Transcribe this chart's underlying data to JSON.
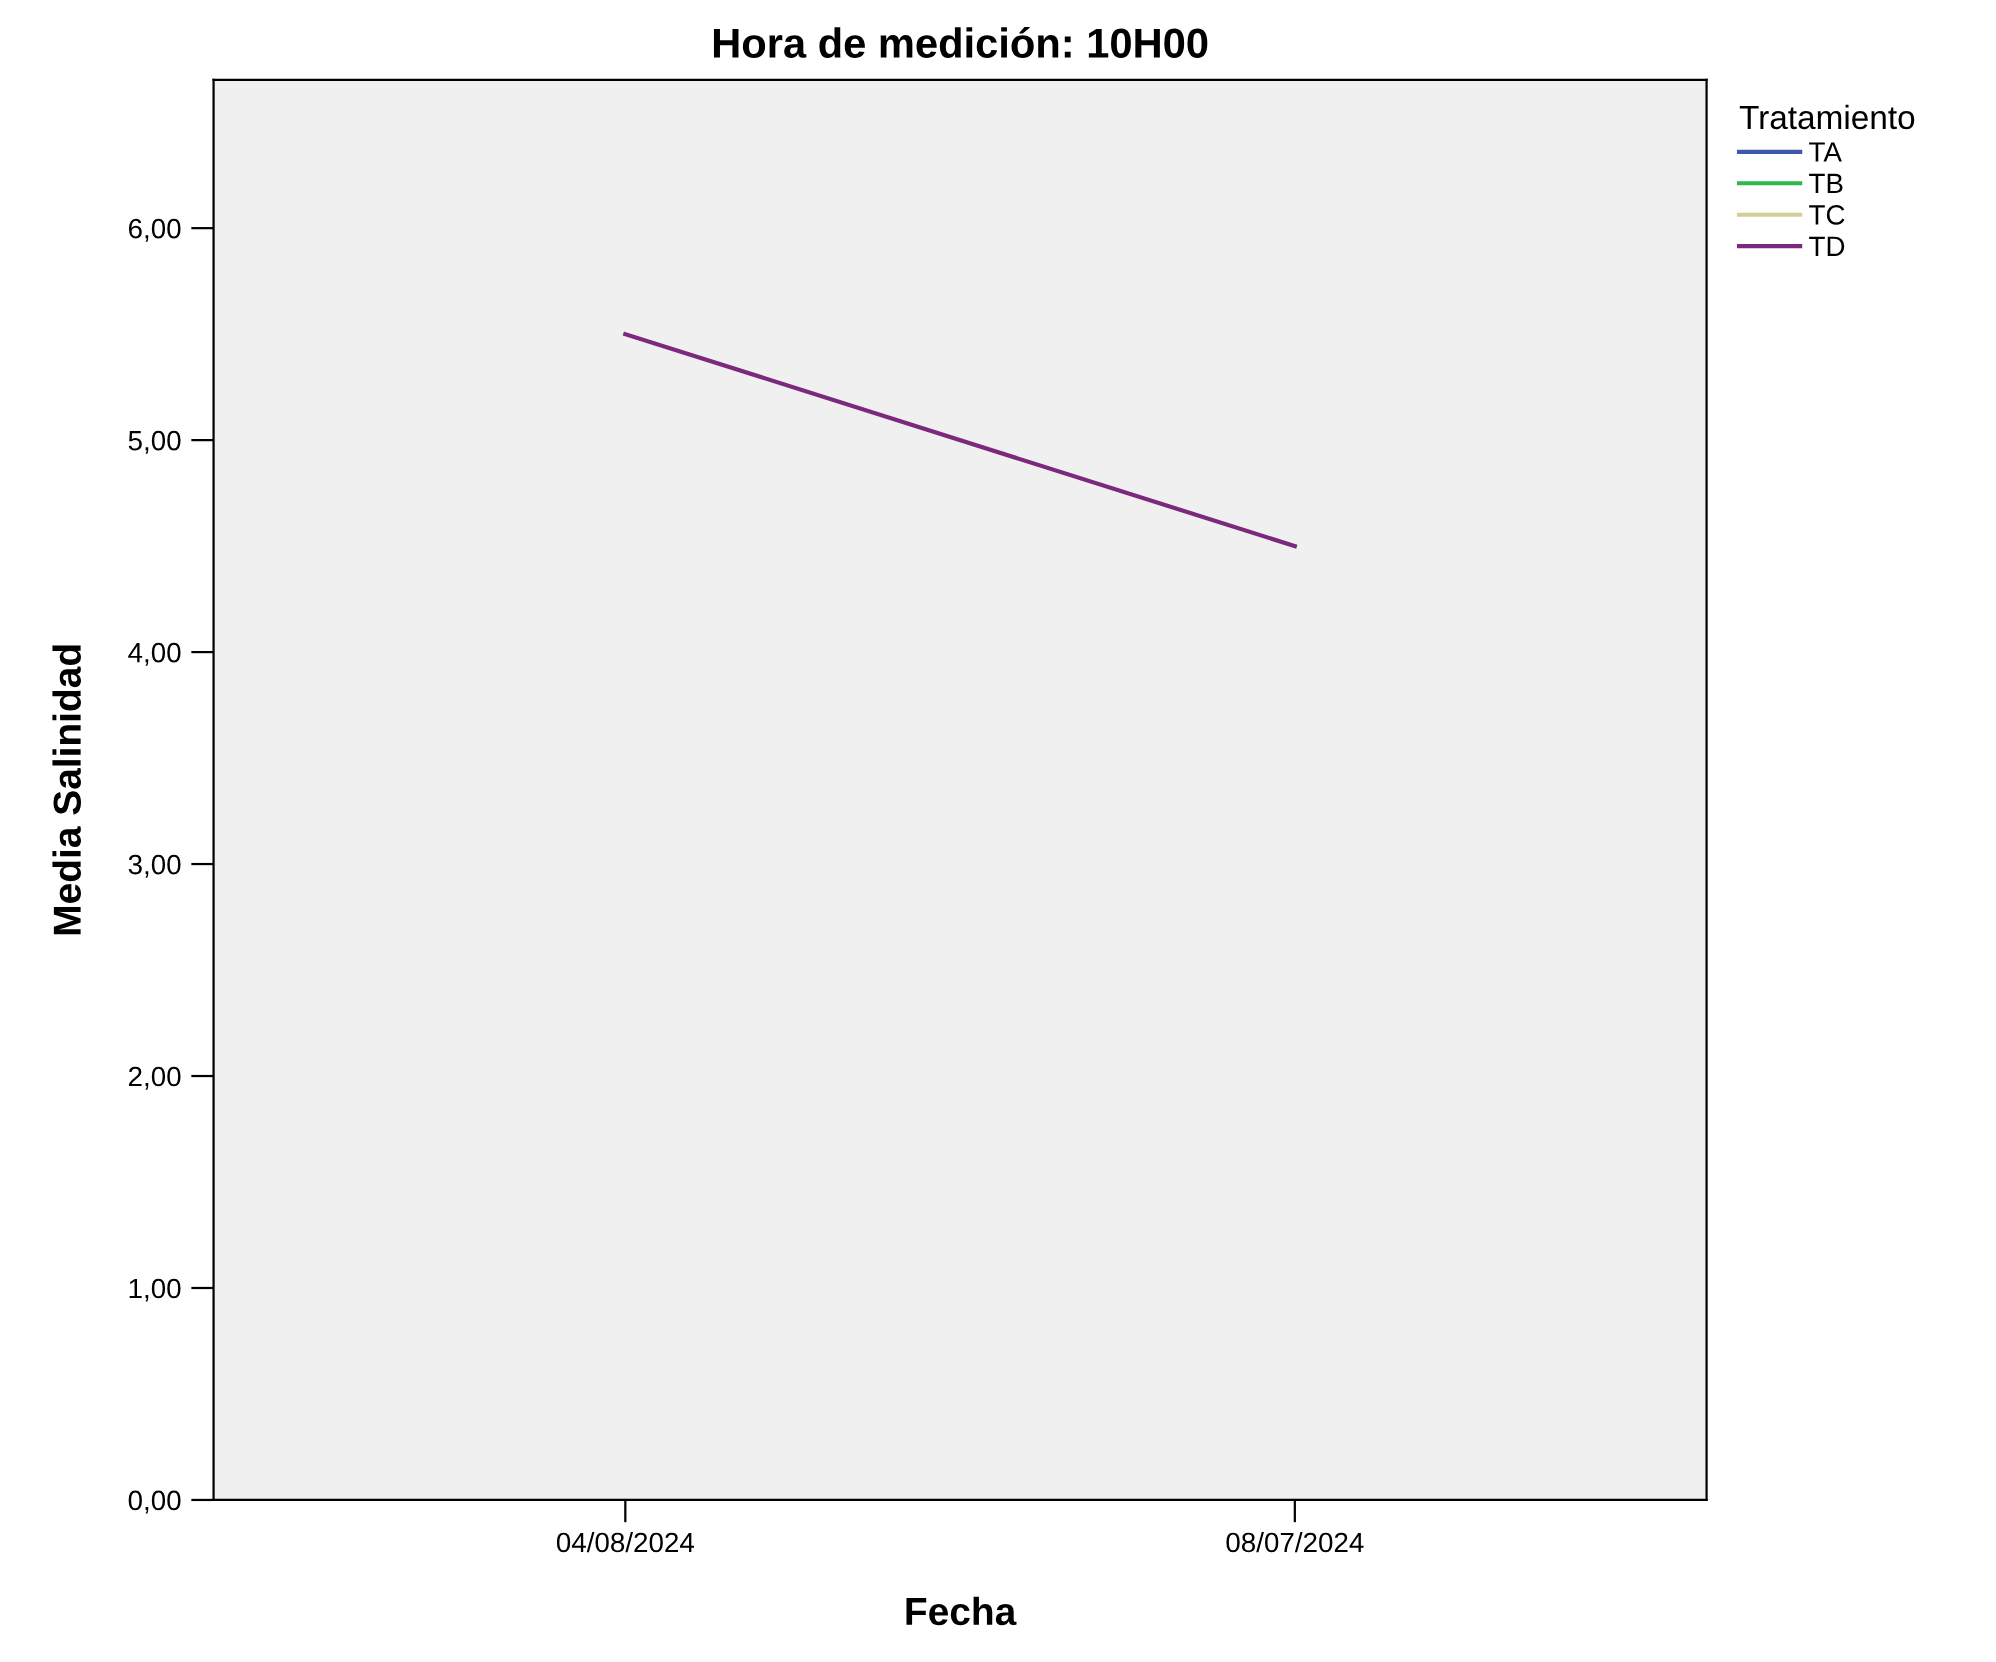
{
  "chart_data": {
    "type": "line",
    "title": "Hora de medición: 10H00",
    "xlabel": "Fecha",
    "ylabel": "Media Salinidad",
    "legend_title": "Tratamiento",
    "categories": [
      "04/08/2024",
      "08/07/2024"
    ],
    "series": [
      {
        "name": "TA",
        "color": "#3e58ac",
        "values": [
          null,
          null
        ]
      },
      {
        "name": "TB",
        "color": "#2eb848",
        "values": [
          null,
          null
        ]
      },
      {
        "name": "TC",
        "color": "#d3ce97",
        "values": [
          null,
          null
        ]
      },
      {
        "name": "TD",
        "color": "#7c287d",
        "values": [
          5.5,
          4.5
        ]
      }
    ],
    "ylim": [
      0,
      6.7
    ],
    "yticks": [
      {
        "value": 0,
        "label": "0,00"
      },
      {
        "value": 1,
        "label": "1,00"
      },
      {
        "value": 2,
        "label": "2,00"
      },
      {
        "value": 3,
        "label": "3,00"
      },
      {
        "value": 4,
        "label": "4,00"
      },
      {
        "value": 5,
        "label": "5,00"
      },
      {
        "value": 6,
        "label": "6,00"
      }
    ],
    "grid": false,
    "legend": "right",
    "marker": "none",
    "line_style": "solid"
  }
}
